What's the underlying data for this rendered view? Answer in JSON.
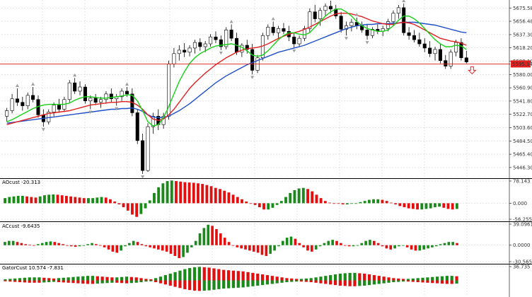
{
  "colors": {
    "background": "#ffffff",
    "grid": "#c8c8c8",
    "axis_line": "#000000",
    "bull_candle": "#ffffff",
    "bear_candle": "#000000",
    "candle_outline": "#000000",
    "jaw": "#1f4fc8",
    "teeth": "#e02020",
    "lips": "#18d018",
    "fractal": "#a0a0a0",
    "hist_up": "#1a8a1a",
    "hist_down": "#e01010",
    "price_line": "#e02020",
    "price_tag_bg": "#e02020",
    "price_tag_text": "#ffffff",
    "down_arrow": "#e02020"
  },
  "chart_data": [
    {
      "type": "candlestick",
      "panel": "price",
      "grid": true,
      "y_tick_labels": [
        "5675.58",
        "5656.48",
        "5637.30",
        "5618.20",
        "5599.10",
        "5580.00",
        "5560.90",
        "5541.80",
        "5522.70",
        "5503.60",
        "5484.50",
        "5465.40",
        "5446.30"
      ],
      "y_ticks": [
        5675.58,
        5656.48,
        5637.3,
        5618.2,
        5599.1,
        5580.0,
        5560.9,
        5541.8,
        5522.7,
        5503.6,
        5484.5,
        5465.4,
        5446.3
      ],
      "ylim": [
        5434,
        5685
      ],
      "current_price": 5595.14,
      "current_price_label": "5595.14",
      "ohlc": [
        [
          5520,
          5532,
          5512,
          5528
        ],
        [
          5528,
          5552,
          5524,
          5545
        ],
        [
          5545,
          5560,
          5535,
          5540
        ],
        [
          5540,
          5548,
          5528,
          5535
        ],
        [
          5535,
          5554,
          5530,
          5550
        ],
        [
          5550,
          5562,
          5540,
          5544
        ],
        [
          5544,
          5550,
          5518,
          5522
        ],
        [
          5522,
          5530,
          5505,
          5512
        ],
        [
          5512,
          5530,
          5508,
          5526
        ],
        [
          5526,
          5540,
          5520,
          5536
        ],
        [
          5536,
          5545,
          5525,
          5530
        ],
        [
          5530,
          5548,
          5526,
          5544
        ],
        [
          5544,
          5572,
          5540,
          5568
        ],
        [
          5568,
          5575,
          5552,
          5556
        ],
        [
          5556,
          5570,
          5550,
          5562
        ],
        [
          5562,
          5566,
          5538,
          5542
        ],
        [
          5542,
          5550,
          5530,
          5546
        ],
        [
          5546,
          5552,
          5536,
          5540
        ],
        [
          5540,
          5548,
          5532,
          5544
        ],
        [
          5544,
          5556,
          5538,
          5552
        ],
        [
          5552,
          5560,
          5540,
          5545
        ],
        [
          5545,
          5552,
          5535,
          5548
        ],
        [
          5548,
          5560,
          5542,
          5556
        ],
        [
          5556,
          5562,
          5548,
          5552
        ],
        [
          5552,
          5560,
          5520,
          5525
        ],
        [
          5525,
          5530,
          5480,
          5485
        ],
        [
          5485,
          5495,
          5437,
          5442
        ],
        [
          5442,
          5510,
          5440,
          5505
        ],
        [
          5505,
          5525,
          5495,
          5520
        ],
        [
          5520,
          5530,
          5500,
          5508
        ],
        [
          5508,
          5525,
          5502,
          5520
        ],
        [
          5520,
          5600,
          5515,
          5595
        ],
        [
          5595,
          5618,
          5590,
          5610
        ],
        [
          5610,
          5622,
          5600,
          5615
        ],
        [
          5615,
          5625,
          5605,
          5612
        ],
        [
          5612,
          5622,
          5606,
          5618
        ],
        [
          5618,
          5630,
          5610,
          5626
        ],
        [
          5626,
          5632,
          5614,
          5620
        ],
        [
          5620,
          5628,
          5612,
          5624
        ],
        [
          5624,
          5638,
          5620,
          5634
        ],
        [
          5634,
          5642,
          5625,
          5630
        ],
        [
          5630,
          5636,
          5615,
          5620
        ],
        [
          5620,
          5648,
          5616,
          5644
        ],
        [
          5644,
          5652,
          5628,
          5632
        ],
        [
          5632,
          5640,
          5608,
          5612
        ],
        [
          5612,
          5625,
          5605,
          5622
        ],
        [
          5622,
          5630,
          5610,
          5616
        ],
        [
          5616,
          5624,
          5580,
          5586
        ],
        [
          5586,
          5608,
          5582,
          5604
        ],
        [
          5604,
          5640,
          5600,
          5636
        ],
        [
          5636,
          5652,
          5630,
          5648
        ],
        [
          5648,
          5656,
          5636,
          5640
        ],
        [
          5640,
          5650,
          5632,
          5646
        ],
        [
          5646,
          5654,
          5638,
          5642
        ],
        [
          5642,
          5650,
          5628,
          5634
        ],
        [
          5634,
          5640,
          5618,
          5624
        ],
        [
          5624,
          5636,
          5620,
          5632
        ],
        [
          5632,
          5650,
          5628,
          5646
        ],
        [
          5646,
          5675,
          5640,
          5670
        ],
        [
          5670,
          5680,
          5655,
          5660
        ],
        [
          5660,
          5676,
          5650,
          5672
        ],
        [
          5672,
          5682,
          5664,
          5678
        ],
        [
          5678,
          5686,
          5668,
          5674
        ],
        [
          5674,
          5680,
          5660,
          5664
        ],
        [
          5664,
          5670,
          5640,
          5645
        ],
        [
          5645,
          5656,
          5636,
          5650
        ],
        [
          5650,
          5660,
          5642,
          5655
        ],
        [
          5655,
          5662,
          5645,
          5650
        ],
        [
          5650,
          5656,
          5640,
          5644
        ],
        [
          5644,
          5652,
          5630,
          5636
        ],
        [
          5636,
          5648,
          5632,
          5645
        ],
        [
          5645,
          5652,
          5638,
          5642
        ],
        [
          5642,
          5650,
          5635,
          5646
        ],
        [
          5646,
          5660,
          5642,
          5656
        ],
        [
          5656,
          5672,
          5650,
          5668
        ],
        [
          5668,
          5680,
          5660,
          5676
        ],
        [
          5676,
          5682,
          5636,
          5640
        ],
        [
          5640,
          5648,
          5630,
          5636
        ],
        [
          5636,
          5644,
          5626,
          5630
        ],
        [
          5630,
          5640,
          5620,
          5624
        ],
        [
          5624,
          5632,
          5612,
          5618
        ],
        [
          5618,
          5628,
          5605,
          5610
        ],
        [
          5610,
          5620,
          5600,
          5616
        ],
        [
          5616,
          5624,
          5596,
          5600
        ],
        [
          5600,
          5608,
          5588,
          5592
        ],
        [
          5592,
          5616,
          5588,
          5612
        ],
        [
          5612,
          5630,
          5606,
          5626
        ],
        [
          5626,
          5632,
          5600,
          5604
        ],
        [
          5604,
          5614,
          5596,
          5598
        ]
      ],
      "series": [
        {
          "role": "jaw",
          "values": [
            5510,
            5511,
            5512,
            5513,
            5514,
            5515,
            5516,
            5517,
            5518,
            5519,
            5520,
            5521,
            5522,
            5523,
            5524,
            5525,
            5526,
            5527,
            5528,
            5529,
            5530,
            5530,
            5531,
            5531,
            5532,
            5530,
            5527,
            5522,
            5519,
            5518,
            5518,
            5520,
            5524,
            5528,
            5533,
            5538,
            5544,
            5550,
            5556,
            5562,
            5568,
            5573,
            5578,
            5582,
            5586,
            5590,
            5594,
            5597,
            5600,
            5603,
            5606,
            5609,
            5612,
            5614,
            5616,
            5618,
            5620,
            5622,
            5625,
            5628,
            5631,
            5634,
            5637,
            5640,
            5643,
            5646,
            5648,
            5650,
            5651,
            5652,
            5652,
            5653,
            5653,
            5653,
            5654,
            5654,
            5655,
            5655,
            5655,
            5654,
            5653,
            5652,
            5651,
            5649,
            5647,
            5645,
            5643,
            5641,
            5640
          ]
        },
        {
          "role": "teeth",
          "values": [
            5508,
            5510,
            5512,
            5514,
            5516,
            5518,
            5520,
            5522,
            5524,
            5525,
            5526,
            5527,
            5528,
            5530,
            5532,
            5534,
            5536,
            5537,
            5538,
            5539,
            5540,
            5540,
            5541,
            5541,
            5540,
            5536,
            5530,
            5522,
            5516,
            5514,
            5516,
            5522,
            5530,
            5540,
            5550,
            5560,
            5568,
            5575,
            5582,
            5588,
            5594,
            5599,
            5604,
            5608,
            5612,
            5615,
            5617,
            5618,
            5619,
            5621,
            5624,
            5628,
            5632,
            5635,
            5638,
            5640,
            5642,
            5645,
            5648,
            5652,
            5656,
            5660,
            5664,
            5667,
            5668,
            5668,
            5667,
            5665,
            5663,
            5660,
            5657,
            5655,
            5653,
            5652,
            5652,
            5654,
            5655,
            5654,
            5652,
            5648,
            5644,
            5640,
            5636,
            5632,
            5630,
            5628,
            5627,
            5625,
            5622
          ]
        },
        {
          "role": "lips",
          "values": [
            5512,
            5515,
            5519,
            5523,
            5527,
            5531,
            5534,
            5536,
            5537,
            5537,
            5537,
            5537,
            5539,
            5543,
            5546,
            5548,
            5548,
            5547,
            5546,
            5546,
            5547,
            5548,
            5549,
            5551,
            5550,
            5542,
            5528,
            5512,
            5506,
            5508,
            5518,
            5534,
            5552,
            5570,
            5584,
            5596,
            5604,
            5610,
            5614,
            5618,
            5621,
            5622,
            5623,
            5624,
            5622,
            5619,
            5614,
            5608,
            5606,
            5608,
            5614,
            5622,
            5630,
            5636,
            5640,
            5640,
            5638,
            5637,
            5640,
            5648,
            5656,
            5664,
            5670,
            5674,
            5674,
            5670,
            5664,
            5656,
            5650,
            5646,
            5644,
            5642,
            5642,
            5644,
            5650,
            5658,
            5664,
            5664,
            5660,
            5654,
            5646,
            5638,
            5630,
            5624,
            5620,
            5620,
            5622,
            5621,
            5616
          ]
        }
      ]
    },
    {
      "type": "bar",
      "panel": "AOcust",
      "title": "AOcust -20.313",
      "y_tick_labels": [
        "78.143",
        "0.000",
        "-56.255"
      ],
      "y_ticks": [
        78.143,
        0,
        -56.255
      ],
      "ylim": [
        -56.255,
        78.143
      ],
      "values": [
        18,
        22,
        24,
        26,
        26,
        24,
        22,
        20,
        24,
        28,
        30,
        31,
        30,
        28,
        26,
        24,
        22,
        20,
        18,
        18,
        18,
        20,
        22,
        20,
        14,
        6,
        -4,
        -14,
        -26,
        -40,
        -48,
        -38,
        -18,
        10,
        36,
        56,
        70,
        78,
        80,
        78,
        76,
        74,
        73,
        72,
        70,
        68,
        64,
        60,
        54,
        50,
        44,
        38,
        30,
        22,
        14,
        6,
        0,
        -6,
        -14,
        -22,
        -22,
        -16,
        -6,
        8,
        22,
        36,
        46,
        52,
        54,
        50,
        42,
        30,
        18,
        8,
        2,
        0,
        -2,
        -4,
        -4,
        -2,
        0,
        4,
        8,
        12,
        14,
        14,
        12,
        8,
        2,
        -4,
        -10,
        -14,
        -18,
        -20,
        -22,
        -22,
        -20,
        -18,
        -14,
        -12,
        -16,
        -20,
        -22,
        -20
      ]
    },
    {
      "type": "bar",
      "panel": "ACcust",
      "title": "ACcust -9.6435",
      "y_tick_labels": [
        "39.0961",
        "0.0000",
        "-30.5659"
      ],
      "y_ticks": [
        39.0961,
        0,
        -30.5659
      ],
      "ylim": [
        -30.5659,
        39.0961
      ],
      "values": [
        6,
        8,
        8,
        6,
        4,
        2,
        1,
        0,
        2,
        4,
        6,
        7,
        6,
        4,
        2,
        0,
        -2,
        -3,
        -2,
        0,
        2,
        4,
        2,
        -1,
        -4,
        -8,
        -12,
        -14,
        -10,
        -2,
        4,
        8,
        6,
        2,
        -2,
        -4,
        -6,
        -8,
        -10,
        -12,
        -16,
        -20,
        -24,
        -22,
        -14,
        -4,
        8,
        22,
        32,
        38,
        36,
        30,
        22,
        14,
        6,
        0,
        -4,
        -6,
        -8,
        -10,
        -12,
        -14,
        -18,
        -20,
        -16,
        -10,
        -2,
        8,
        14,
        16,
        12,
        4,
        -4,
        -10,
        -12,
        -8,
        -2,
        4,
        8,
        10,
        8,
        4,
        0,
        -2,
        -2,
        0,
        4,
        8,
        10,
        8,
        4,
        -2,
        -6,
        -8,
        -6,
        -2,
        0,
        -4,
        -8,
        -10,
        -10,
        -8,
        -6,
        -4,
        -2,
        2,
        4,
        6,
        6,
        4
      ]
    },
    {
      "type": "bar",
      "panel": "GatorCust",
      "title": "GatorCust 10.574 -7.831",
      "y_tick_labels": [
        "36.735"
      ],
      "y_ticks": [
        36.735
      ],
      "ylim": [
        -36.735,
        36.735
      ],
      "upper": [
        3,
        4,
        5,
        6,
        7,
        8,
        8,
        8,
        7,
        6,
        5,
        6,
        7,
        8,
        9,
        10,
        11,
        12,
        12,
        11,
        10,
        9,
        8,
        8,
        9,
        10,
        9,
        8,
        6,
        4,
        3,
        6,
        10,
        14,
        18,
        22,
        26,
        30,
        33,
        35,
        36,
        35,
        34,
        32,
        30,
        28,
        27,
        26,
        25,
        24,
        22,
        20,
        18,
        16,
        14,
        12,
        10,
        8,
        6,
        5,
        4,
        4,
        5,
        6,
        8,
        10,
        12,
        14,
        16,
        18,
        19,
        20,
        20,
        19,
        18,
        16,
        14,
        12,
        10,
        8,
        6,
        5,
        4,
        4,
        5,
        6,
        7,
        8,
        9,
        10,
        11,
        12,
        12,
        11
      ]
    }
  ]
}
